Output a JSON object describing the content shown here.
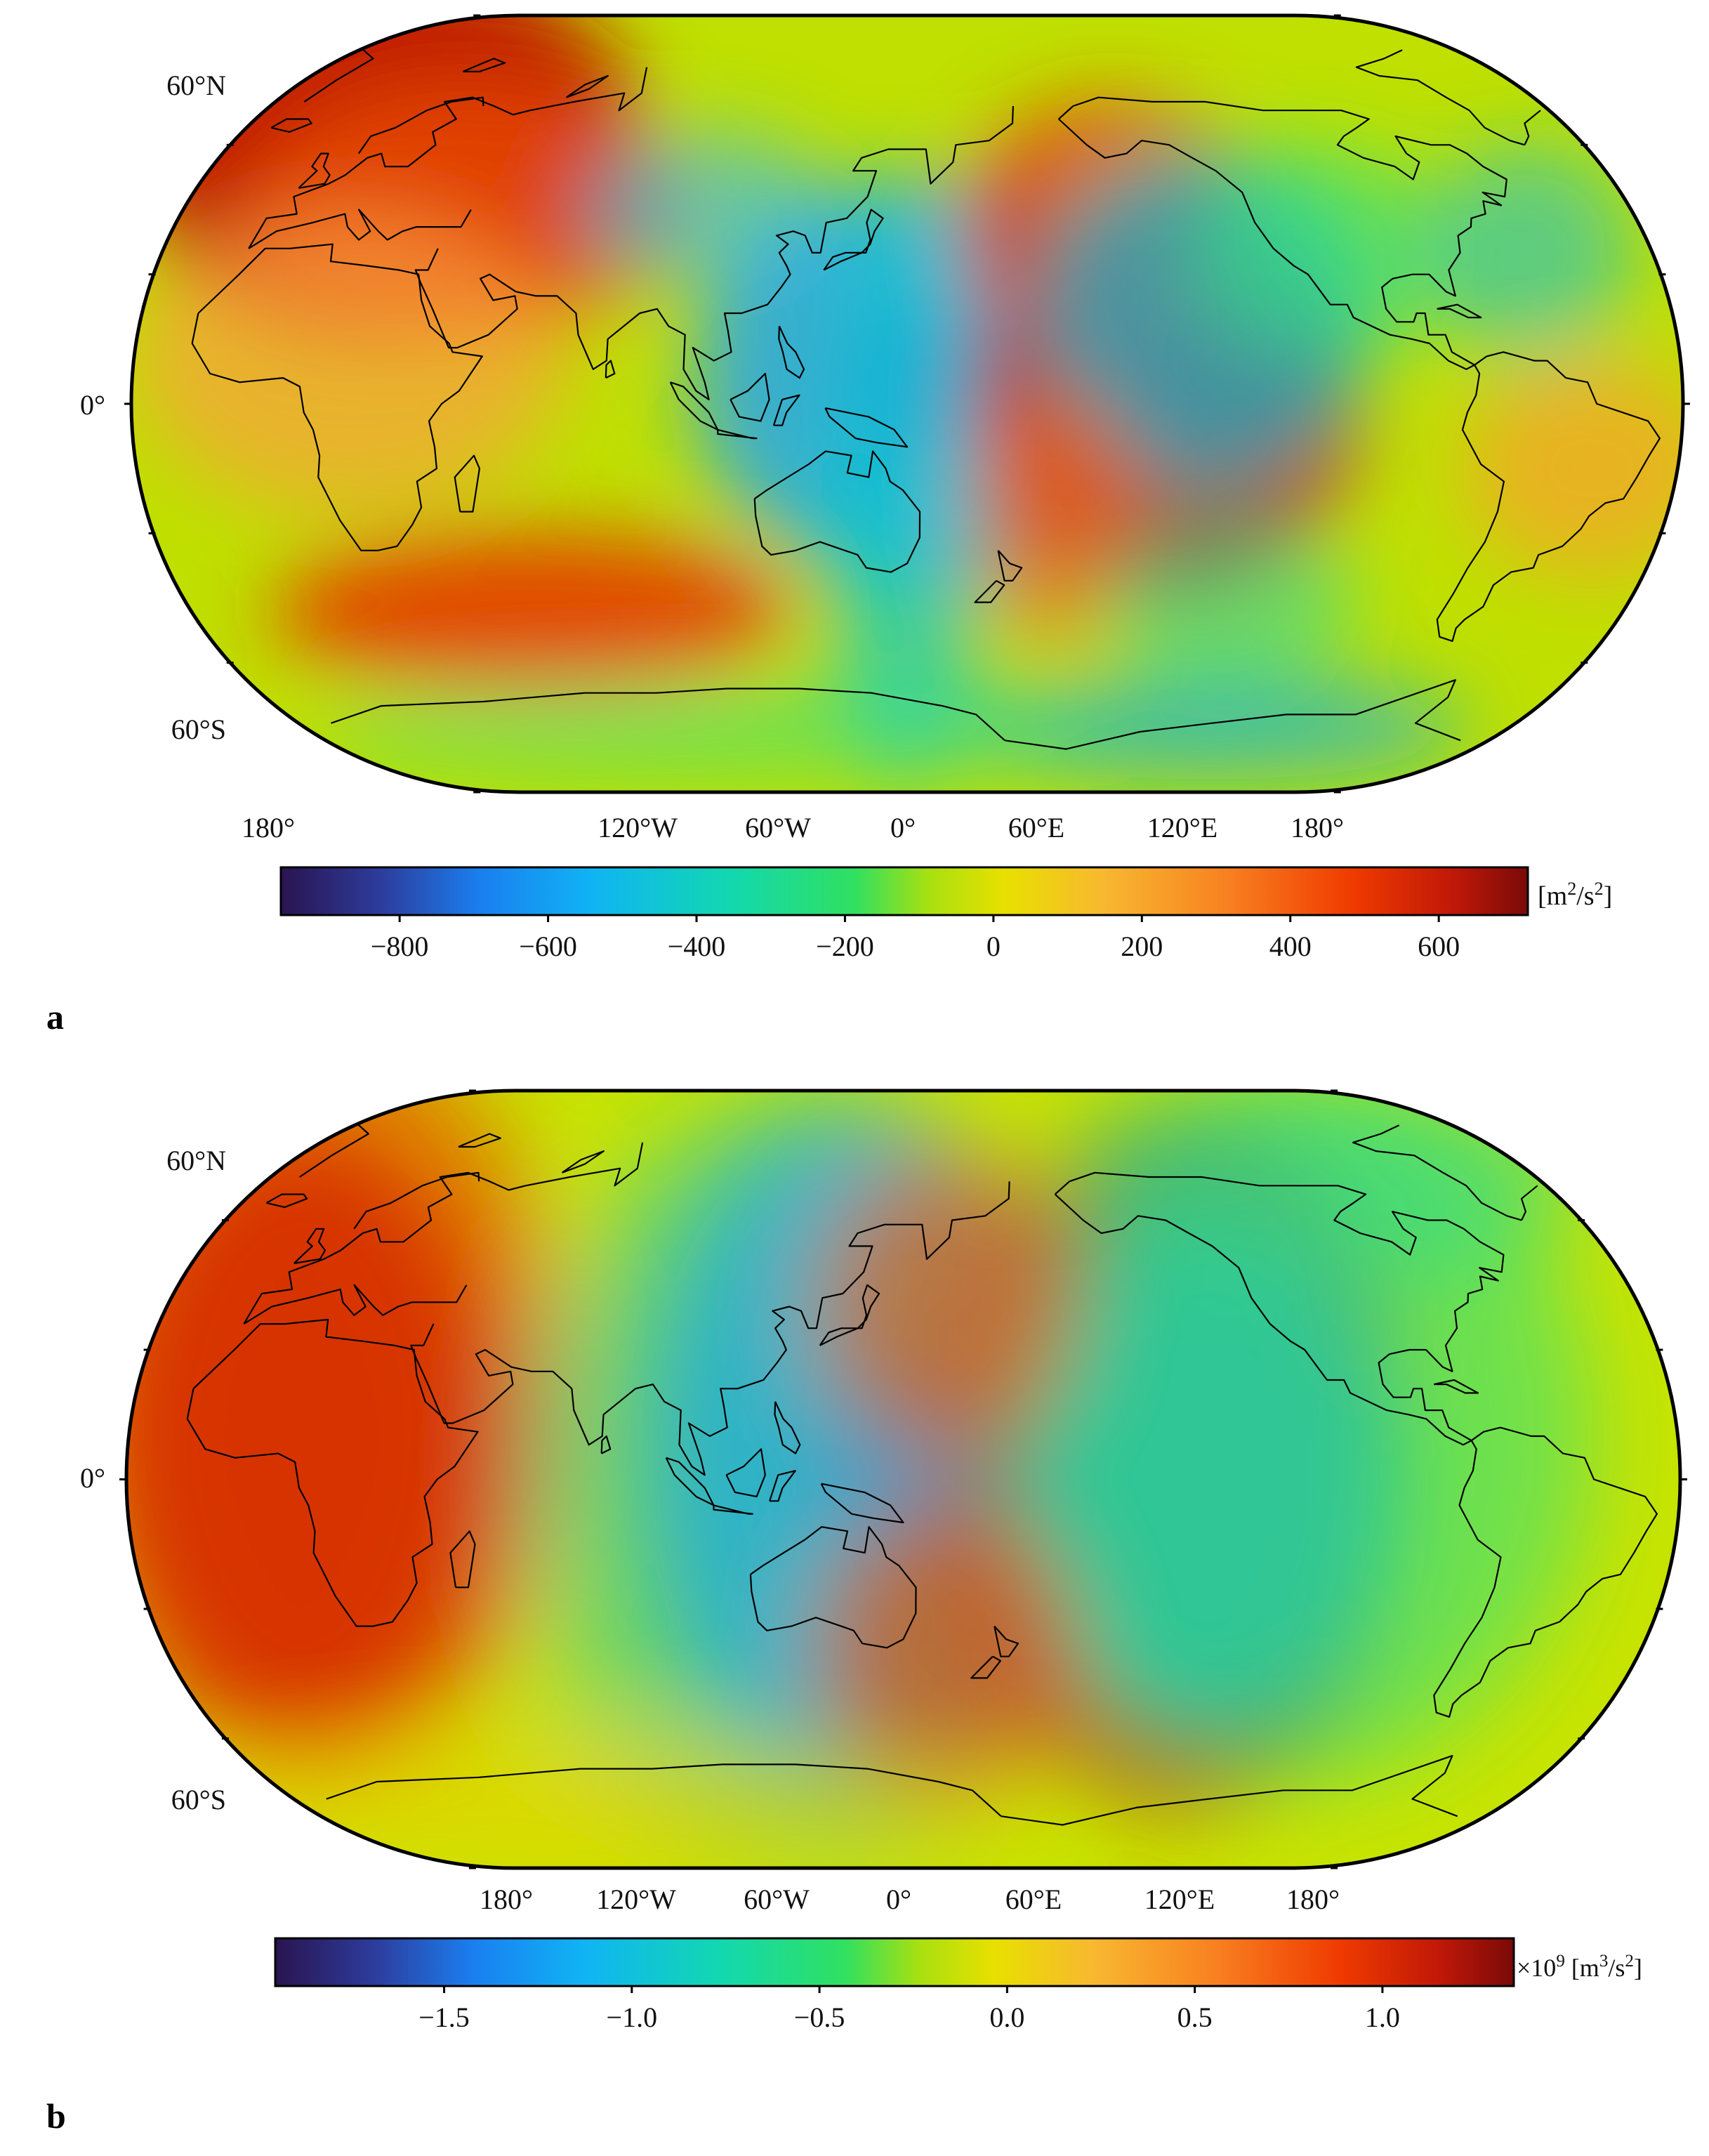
{
  "panels": [
    {
      "letter": "a",
      "lat_labels": [
        "60°N",
        "0°",
        "60°S"
      ],
      "lon_labels": [
        "180°",
        "120°W",
        "60°W",
        "0°",
        "60°E",
        "120°E",
        "180°"
      ],
      "colorbar": {
        "ticks": [
          "−800",
          "−600",
          "−400",
          "−200",
          "0",
          "200",
          "400",
          "600"
        ],
        "unit_prefix": "[m",
        "unit_exp1": "2",
        "unit_mid": "/s",
        "unit_exp2": "2",
        "unit_suffix": "]",
        "range": [
          -960,
          720
        ]
      },
      "field": {
        "background": "#bfe000",
        "blobs": [
          {
            "lon": 10,
            "lat": 60,
            "rx": 60,
            "ry": 45,
            "color": "#c01000",
            "opacity": 0.95
          },
          {
            "lon": 40,
            "lat": 45,
            "rx": 50,
            "ry": 30,
            "color": "#f05000",
            "opacity": 0.7
          },
          {
            "lon": 20,
            "lat": 10,
            "rx": 50,
            "ry": 35,
            "color": "#f9a040",
            "opacity": 0.7
          },
          {
            "lon": 155,
            "lat": 5,
            "rx": 22,
            "ry": 20,
            "color": "#2a1450",
            "opacity": 1
          },
          {
            "lon": 155,
            "lat": 5,
            "rx": 55,
            "ry": 48,
            "color": "#1aa0ff",
            "opacity": 0.8
          },
          {
            "lon": 150,
            "lat": -20,
            "rx": 20,
            "ry": 70,
            "color": "#10c8d0",
            "opacity": 0.7
          },
          {
            "lon": 100,
            "lat": 45,
            "rx": 30,
            "ry": 18,
            "color": "#30b8ff",
            "opacity": 0.6
          },
          {
            "lon": 210,
            "lat": 0,
            "rx": 45,
            "ry": 45,
            "color": "#c01000",
            "opacity": 0.9
          },
          {
            "lon": 200,
            "lat": 40,
            "rx": 35,
            "ry": 30,
            "color": "#e83000",
            "opacity": 0.8
          },
          {
            "lon": -140,
            "lat": 20,
            "rx": 40,
            "ry": 40,
            "color": "#10c0e0",
            "opacity": 0.7
          },
          {
            "lon": -110,
            "lat": 35,
            "rx": 30,
            "ry": 25,
            "color": "#30e080",
            "opacity": 0.6
          },
          {
            "lon": -60,
            "lat": 35,
            "rx": 25,
            "ry": 25,
            "color": "#20c0d0",
            "opacity": 0.6
          },
          {
            "lon": -50,
            "lat": -15,
            "rx": 30,
            "ry": 25,
            "color": "#f8a030",
            "opacity": 0.7
          },
          {
            "lon": 55,
            "lat": -48,
            "rx": 60,
            "ry": 18,
            "color": "#e83000",
            "opacity": 0.85
          },
          {
            "lon": -175,
            "lat": -25,
            "rx": 20,
            "ry": 30,
            "color": "#f07020",
            "opacity": 0.7
          },
          {
            "lon": -120,
            "lat": -75,
            "rx": 60,
            "ry": 12,
            "color": "#10b0e0",
            "opacity": 0.7
          },
          {
            "lon": 90,
            "lat": -75,
            "rx": 90,
            "ry": 10,
            "color": "#30e090",
            "opacity": 0.6
          },
          {
            "lon": -130,
            "lat": -45,
            "rx": 30,
            "ry": 20,
            "color": "#30d8a0",
            "opacity": 0.6
          }
        ]
      }
    },
    {
      "letter": "b",
      "lat_labels": [
        "60°N",
        "0°",
        "60°S"
      ],
      "lon_labels": [
        "180°",
        "120°W",
        "60°W",
        "0°",
        "60°E",
        "120°E",
        "180°"
      ],
      "colorbar": {
        "ticks": [
          "−1.5",
          "−1.0",
          "−0.5",
          "0.0",
          "0.5",
          "1.0"
        ],
        "unit_prefix": "×10",
        "unit_exp0": "9",
        "unit_mid0": " [m",
        "unit_exp1": "3",
        "unit_mid": "/s",
        "unit_exp2": "2",
        "unit_suffix": "]",
        "range": [
          -1.95,
          1.35
        ]
      },
      "field": {
        "background": "#c8e400",
        "blobs": [
          {
            "lon": 10,
            "lat": 10,
            "rx": 45,
            "ry": 70,
            "color": "#b01000",
            "opacity": 0.95
          },
          {
            "lon": 10,
            "lat": 20,
            "rx": 60,
            "ry": 90,
            "color": "#f04000",
            "opacity": 0.6
          },
          {
            "lon": 150,
            "lat": 5,
            "rx": 20,
            "ry": 25,
            "color": "#2a1450",
            "opacity": 1
          },
          {
            "lon": 140,
            "lat": 5,
            "rx": 50,
            "ry": 80,
            "color": "#1a90ff",
            "opacity": 0.8
          },
          {
            "lon": 130,
            "lat": 0,
            "rx": 70,
            "ry": 90,
            "color": "#20c8c0",
            "opacity": 0.5
          },
          {
            "lon": 215,
            "lat": 5,
            "rx": 50,
            "ry": 80,
            "color": "#b01000",
            "opacity": 0.9
          },
          {
            "lon": -140,
            "lat": 0,
            "rx": 45,
            "ry": 60,
            "color": "#10c0e0",
            "opacity": 0.8
          },
          {
            "lon": -120,
            "lat": 10,
            "rx": 70,
            "ry": 80,
            "color": "#30e080",
            "opacity": 0.6
          },
          {
            "lon": -90,
            "lat": 70,
            "rx": 60,
            "ry": 25,
            "color": "#30d890",
            "opacity": 0.6
          },
          {
            "lon": -200,
            "lat": -40,
            "rx": 30,
            "ry": 35,
            "color": "#f05000",
            "opacity": 0.7
          },
          {
            "lon": -200,
            "lat": 40,
            "rx": 30,
            "ry": 35,
            "color": "#f06010",
            "opacity": 0.7
          },
          {
            "lon": 60,
            "lat": -75,
            "rx": 100,
            "ry": 15,
            "color": "#e8d000",
            "opacity": 0.6
          }
        ]
      }
    }
  ]
}
